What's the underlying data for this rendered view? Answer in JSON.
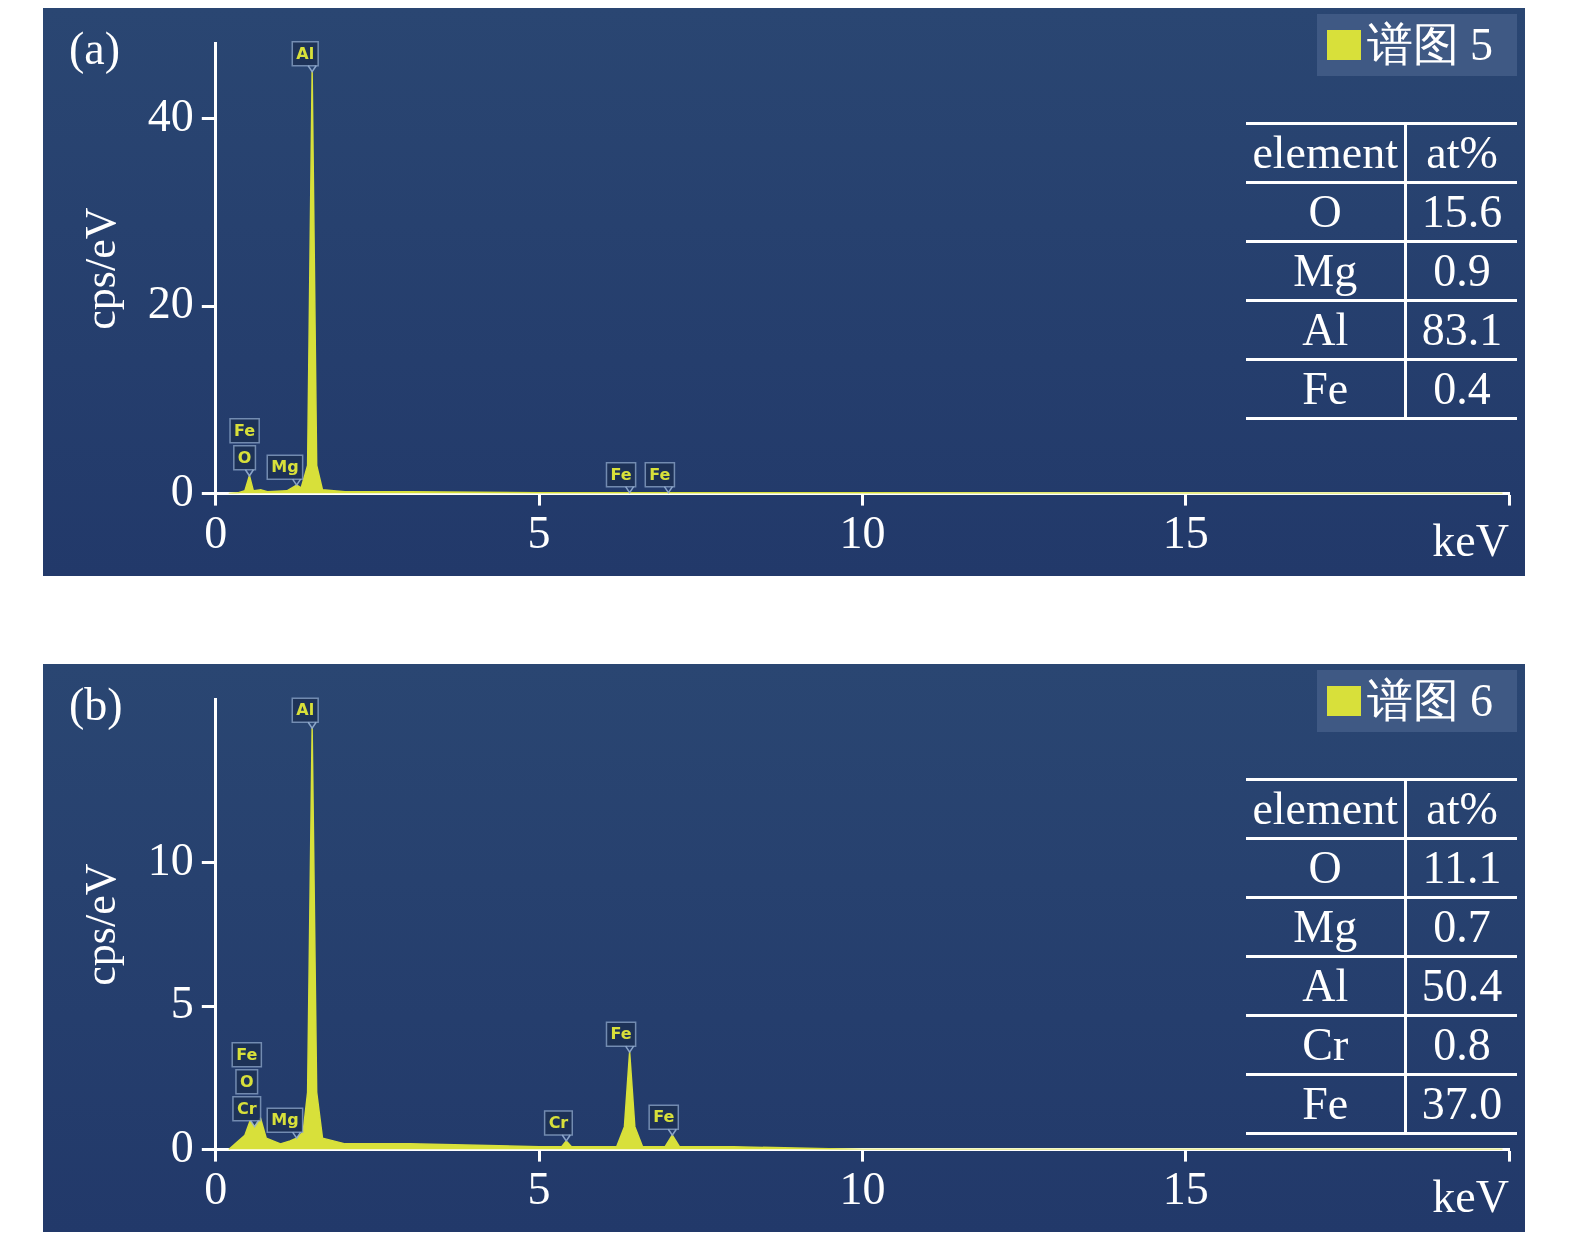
{
  "chart_data": [
    {
      "type": "area",
      "title": "(a)",
      "xlabel": "keV",
      "ylabel": "cps/eV",
      "xlim": [
        0,
        20
      ],
      "xticks": [
        0,
        5,
        10,
        15,
        {
          "value": 20,
          "label": null
        }
      ],
      "ylim": [
        0,
        48
      ],
      "yticks": [
        0,
        20,
        40
      ],
      "grid": false,
      "legend": "top right",
      "marker": "none",
      "series": [
        {
          "name": "谱图 5",
          "color": "#d8e03a",
          "x": [
            0.2,
            0.35,
            0.45,
            0.52,
            0.58,
            0.7,
            0.8,
            1.1,
            1.25,
            1.32,
            1.42,
            1.49,
            1.56,
            1.65,
            2,
            3,
            5,
            7,
            10,
            19.9
          ],
          "values": [
            0,
            0.1,
            0.3,
            1.9,
            0.3,
            0.4,
            0.2,
            0.3,
            0.9,
            0.6,
            3,
            45,
            3,
            0.4,
            0.2,
            0.2,
            0.1,
            0.1,
            0.1,
            0
          ]
        }
      ],
      "annotations": [
        "element",
        "at%",
        "O",
        "15.6",
        "Mg",
        "0.9",
        "Al",
        "83.1",
        "Fe",
        "0.4",
        {
          "text": "O",
          "x": 0.52,
          "y": 1.9
        },
        {
          "text": "Mg",
          "x": 1.25,
          "y": 0.9
        },
        {
          "text": "Al",
          "x": 1.49,
          "y": 45
        },
        {
          "text": "Fe",
          "x": 6.4,
          "y": 0.1
        },
        {
          "text": "Fe",
          "x": 7.0,
          "y": 0.1
        },
        "Fe"
      ]
    },
    {
      "type": "area",
      "title": "(b)",
      "xlabel": "keV",
      "ylabel": "cps/eV",
      "xlim": [
        0,
        20
      ],
      "xticks": [
        0,
        5,
        10,
        15,
        {
          "value": 20,
          "label": null
        }
      ],
      "ylim": [
        0,
        15.7
      ],
      "yticks": [
        0,
        5,
        10
      ],
      "grid": false,
      "legend": "top right",
      "marker": "none",
      "series": [
        {
          "name": "谱图 6",
          "color": "#d8e03a",
          "x": [
            0.2,
            0.3,
            0.45,
            0.53,
            0.6,
            0.69,
            0.78,
            1.0,
            1.15,
            1.25,
            1.35,
            1.42,
            1.49,
            1.56,
            1.65,
            2,
            3,
            5,
            5.35,
            5.42,
            5.5,
            6.2,
            6.32,
            6.4,
            6.48,
            6.6,
            6.95,
            7.06,
            7.17,
            8,
            10,
            19.9
          ],
          "values": [
            0,
            0.2,
            0.5,
            1.0,
            0.8,
            1.1,
            0.4,
            0.2,
            0.3,
            0.4,
            0.6,
            2,
            14.7,
            2,
            0.4,
            0.2,
            0.2,
            0.1,
            0.1,
            0.3,
            0.1,
            0.1,
            0.8,
            3.4,
            0.8,
            0.1,
            0.1,
            0.5,
            0.1,
            0.1,
            0,
            0
          ]
        }
      ],
      "annotations": [
        "element",
        "at%",
        "O",
        "11.1",
        "Mg",
        "0.7",
        "Al",
        "50.4",
        "Cr",
        "0.8",
        "Fe",
        "37.0",
        {
          "text": "Cr",
          "x": 0.6,
          "y": 0.8
        },
        {
          "text": "Mg",
          "x": 1.25,
          "y": 0.4
        },
        {
          "text": "Al",
          "x": 1.49,
          "y": 14.7
        },
        {
          "text": "Cr",
          "x": 5.42,
          "y": 0.3
        },
        {
          "text": "Fe",
          "x": 6.4,
          "y": 3.4
        },
        {
          "text": "Fe",
          "x": 7.06,
          "y": 0.5
        },
        "O",
        "Fe"
      ]
    }
  ]
}
